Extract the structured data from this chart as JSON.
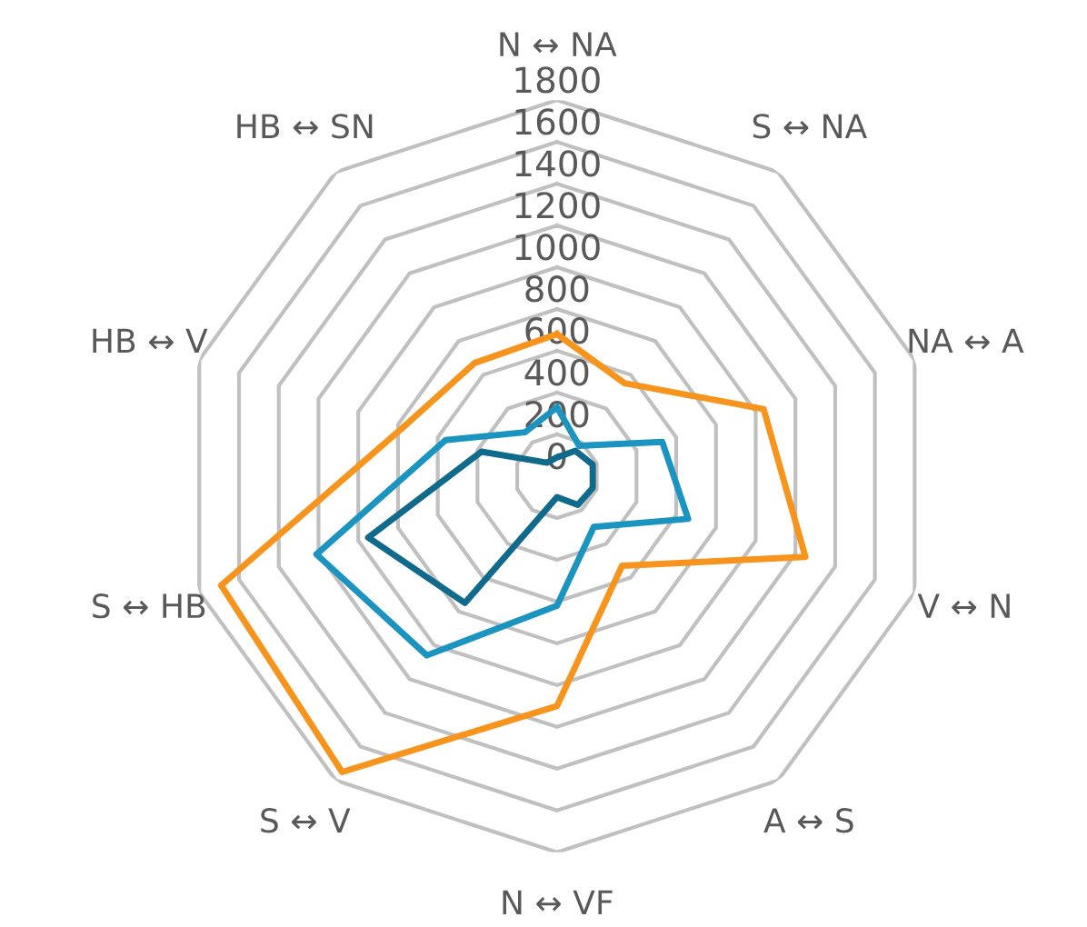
{
  "chart_data": {
    "type": "radar",
    "categories": [
      "N ↔ NA",
      "S ↔ NA",
      "NA ↔ A",
      "V ↔ N",
      "A ↔ S",
      "N ↔ VF",
      "S ↔ V",
      "S ↔ HB",
      "HB ↔ V",
      "HB ↔ SN"
    ],
    "series": [
      {
        "color": "#f7941d",
        "values": [
          680,
          550,
          1040,
          1250,
          530,
          1100,
          1750,
          1690,
          770,
          670
        ]
      },
      {
        "color": "#1b95c0",
        "values": [
          330,
          180,
          530,
          660,
          300,
          620,
          1060,
          1210,
          560,
          260
        ]
      },
      {
        "color": "#0f6a8b",
        "values": [
          90,
          150,
          180,
          180,
          170,
          100,
          750,
          950,
          380,
          80
        ]
      }
    ],
    "ylim": [
      0,
      1800
    ],
    "yticks": [
      0,
      200,
      400,
      600,
      800,
      1000,
      1200,
      1400,
      1600,
      1800
    ],
    "grid": true,
    "marker": "none",
    "line_style": "solid"
  }
}
